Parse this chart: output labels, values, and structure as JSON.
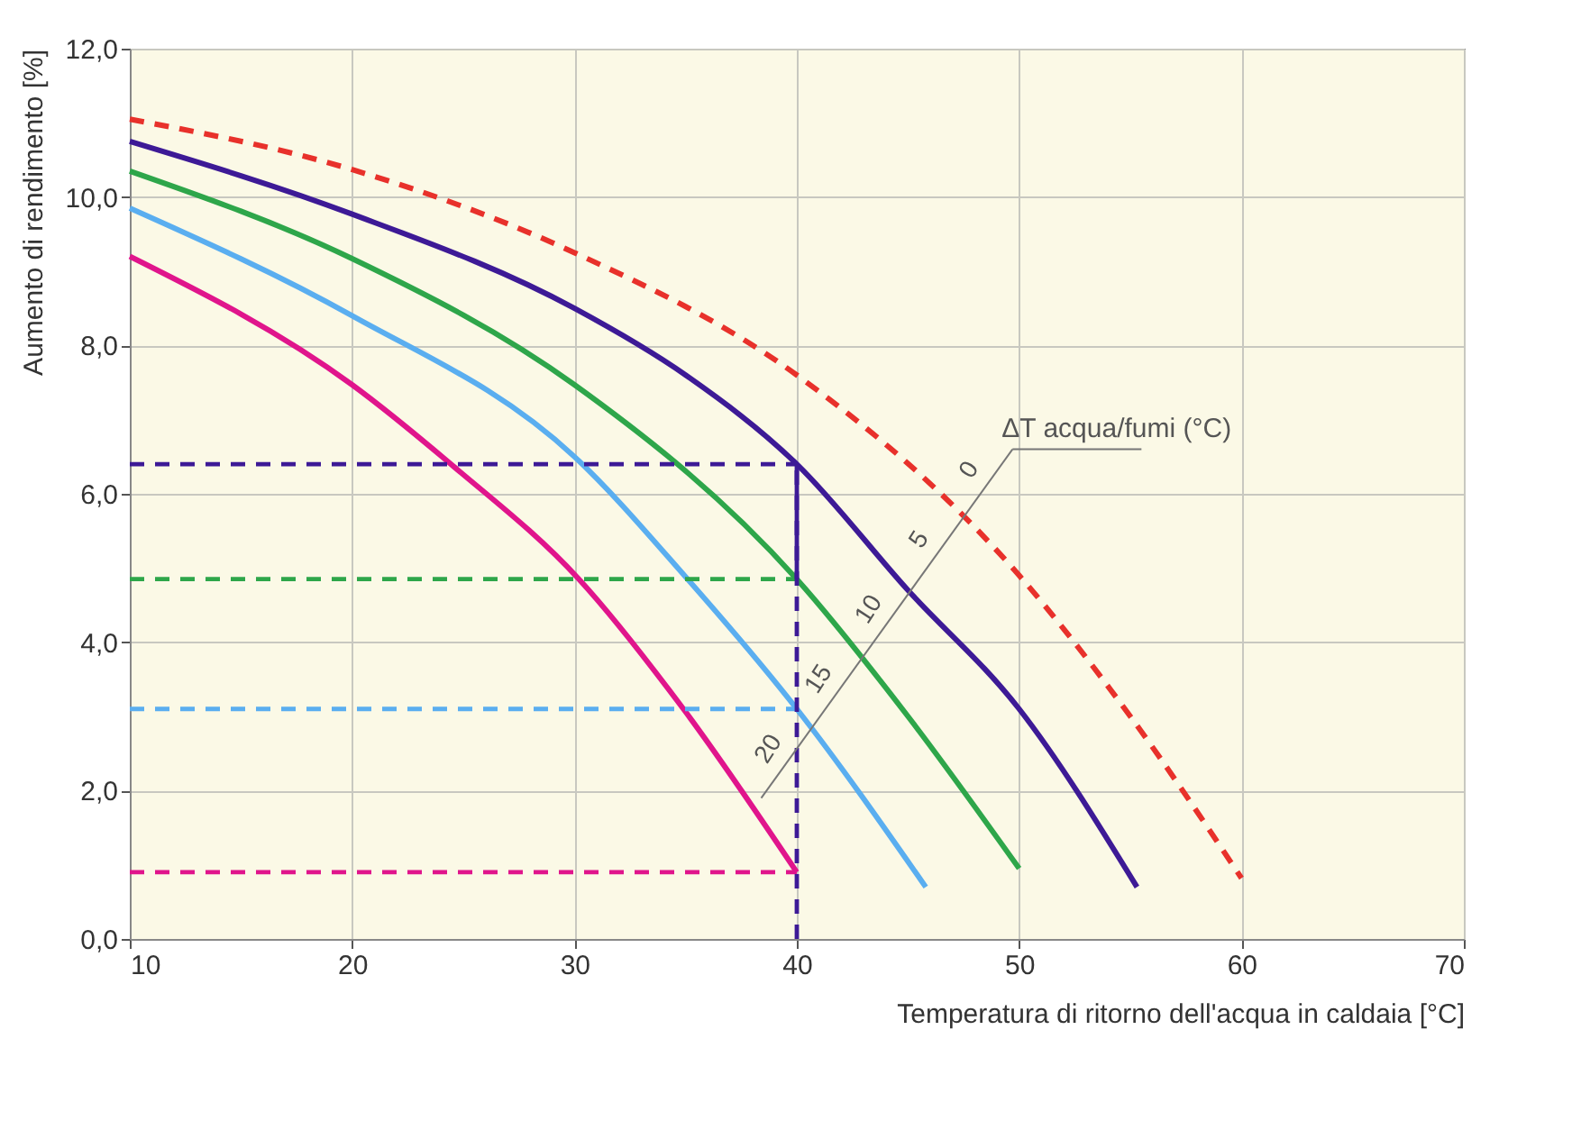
{
  "chart_data": {
    "type": "line",
    "xlabel": "Temperatura di ritorno dell'acqua in caldaia [°C]",
    "ylabel": "Aumento di rendimento [%]",
    "annotations": [
      "ΔT acqua/fumi  (°C)"
    ],
    "xlim": [
      10,
      70
    ],
    "xticks": [
      10,
      20,
      30,
      40,
      50,
      60,
      70
    ],
    "ylim": [
      0,
      12
    ],
    "yticks": [
      {
        "value": 0,
        "label": "0,0"
      },
      {
        "value": 2,
        "label": "2,0"
      },
      {
        "value": 4,
        "label": "4,0"
      },
      {
        "value": 6,
        "label": "6,0"
      },
      {
        "value": 8,
        "label": "8,0"
      },
      {
        "value": 10,
        "label": "10,0"
      },
      {
        "value": 12,
        "label": "12,0"
      }
    ],
    "grid": true,
    "series": [
      {
        "name": "0",
        "color": "#e8312b",
        "line_style": "dashed",
        "x": [
          10,
          20,
          30,
          40,
          50,
          55,
          60
        ],
        "values": [
          11.05,
          10.37,
          9.25,
          7.6,
          4.9,
          3.0,
          0.82
        ]
      },
      {
        "name": "5",
        "color": "#3d1a96",
        "line_style": "solid",
        "x": [
          10,
          20,
          30,
          35,
          40,
          45,
          50,
          55.3
        ],
        "values": [
          10.75,
          9.77,
          8.5,
          7.6,
          6.4,
          4.7,
          3.1,
          0.7
        ]
      },
      {
        "name": "10",
        "color": "#2ea64a",
        "line_style": "solid",
        "x": [
          10,
          20,
          30,
          40,
          45,
          50
        ],
        "values": [
          10.35,
          9.17,
          7.47,
          4.85,
          3.0,
          0.95
        ]
      },
      {
        "name": "15",
        "color": "#5aaef0",
        "line_style": "solid",
        "x": [
          10,
          20,
          30,
          35,
          40,
          45.8
        ],
        "values": [
          9.85,
          8.4,
          6.5,
          4.88,
          3.1,
          0.7
        ]
      },
      {
        "name": "20",
        "color": "#e0158c",
        "line_style": "solid",
        "x": [
          10,
          20,
          24.6,
          30.2,
          34.9,
          40
        ],
        "values": [
          9.2,
          7.47,
          6.36,
          4.85,
          3.1,
          0.9
        ]
      },
      {
        "color": "#3d1a96",
        "line_style": "dashed",
        "x": [
          10,
          40
        ],
        "values": [
          6.4,
          6.4
        ]
      },
      {
        "color": "#2ea64a",
        "line_style": "dashed",
        "x": [
          10,
          40
        ],
        "values": [
          4.85,
          4.85
        ]
      },
      {
        "color": "#5aaef0",
        "line_style": "dashed",
        "x": [
          10,
          40
        ],
        "values": [
          3.1,
          3.1
        ]
      },
      {
        "color": "#e0158c",
        "line_style": "dashed",
        "x": [
          10,
          40
        ],
        "values": [
          0.9,
          0.9
        ]
      },
      {
        "color": "#3d1a96",
        "line_style": "dashed",
        "x": [
          40,
          40
        ],
        "values": [
          0,
          6.4
        ]
      },
      {
        "color": "#3d1a96",
        "line_style": "solid",
        "x": [
          40,
          40
        ],
        "values": [
          4.85,
          6.4
        ]
      }
    ]
  }
}
